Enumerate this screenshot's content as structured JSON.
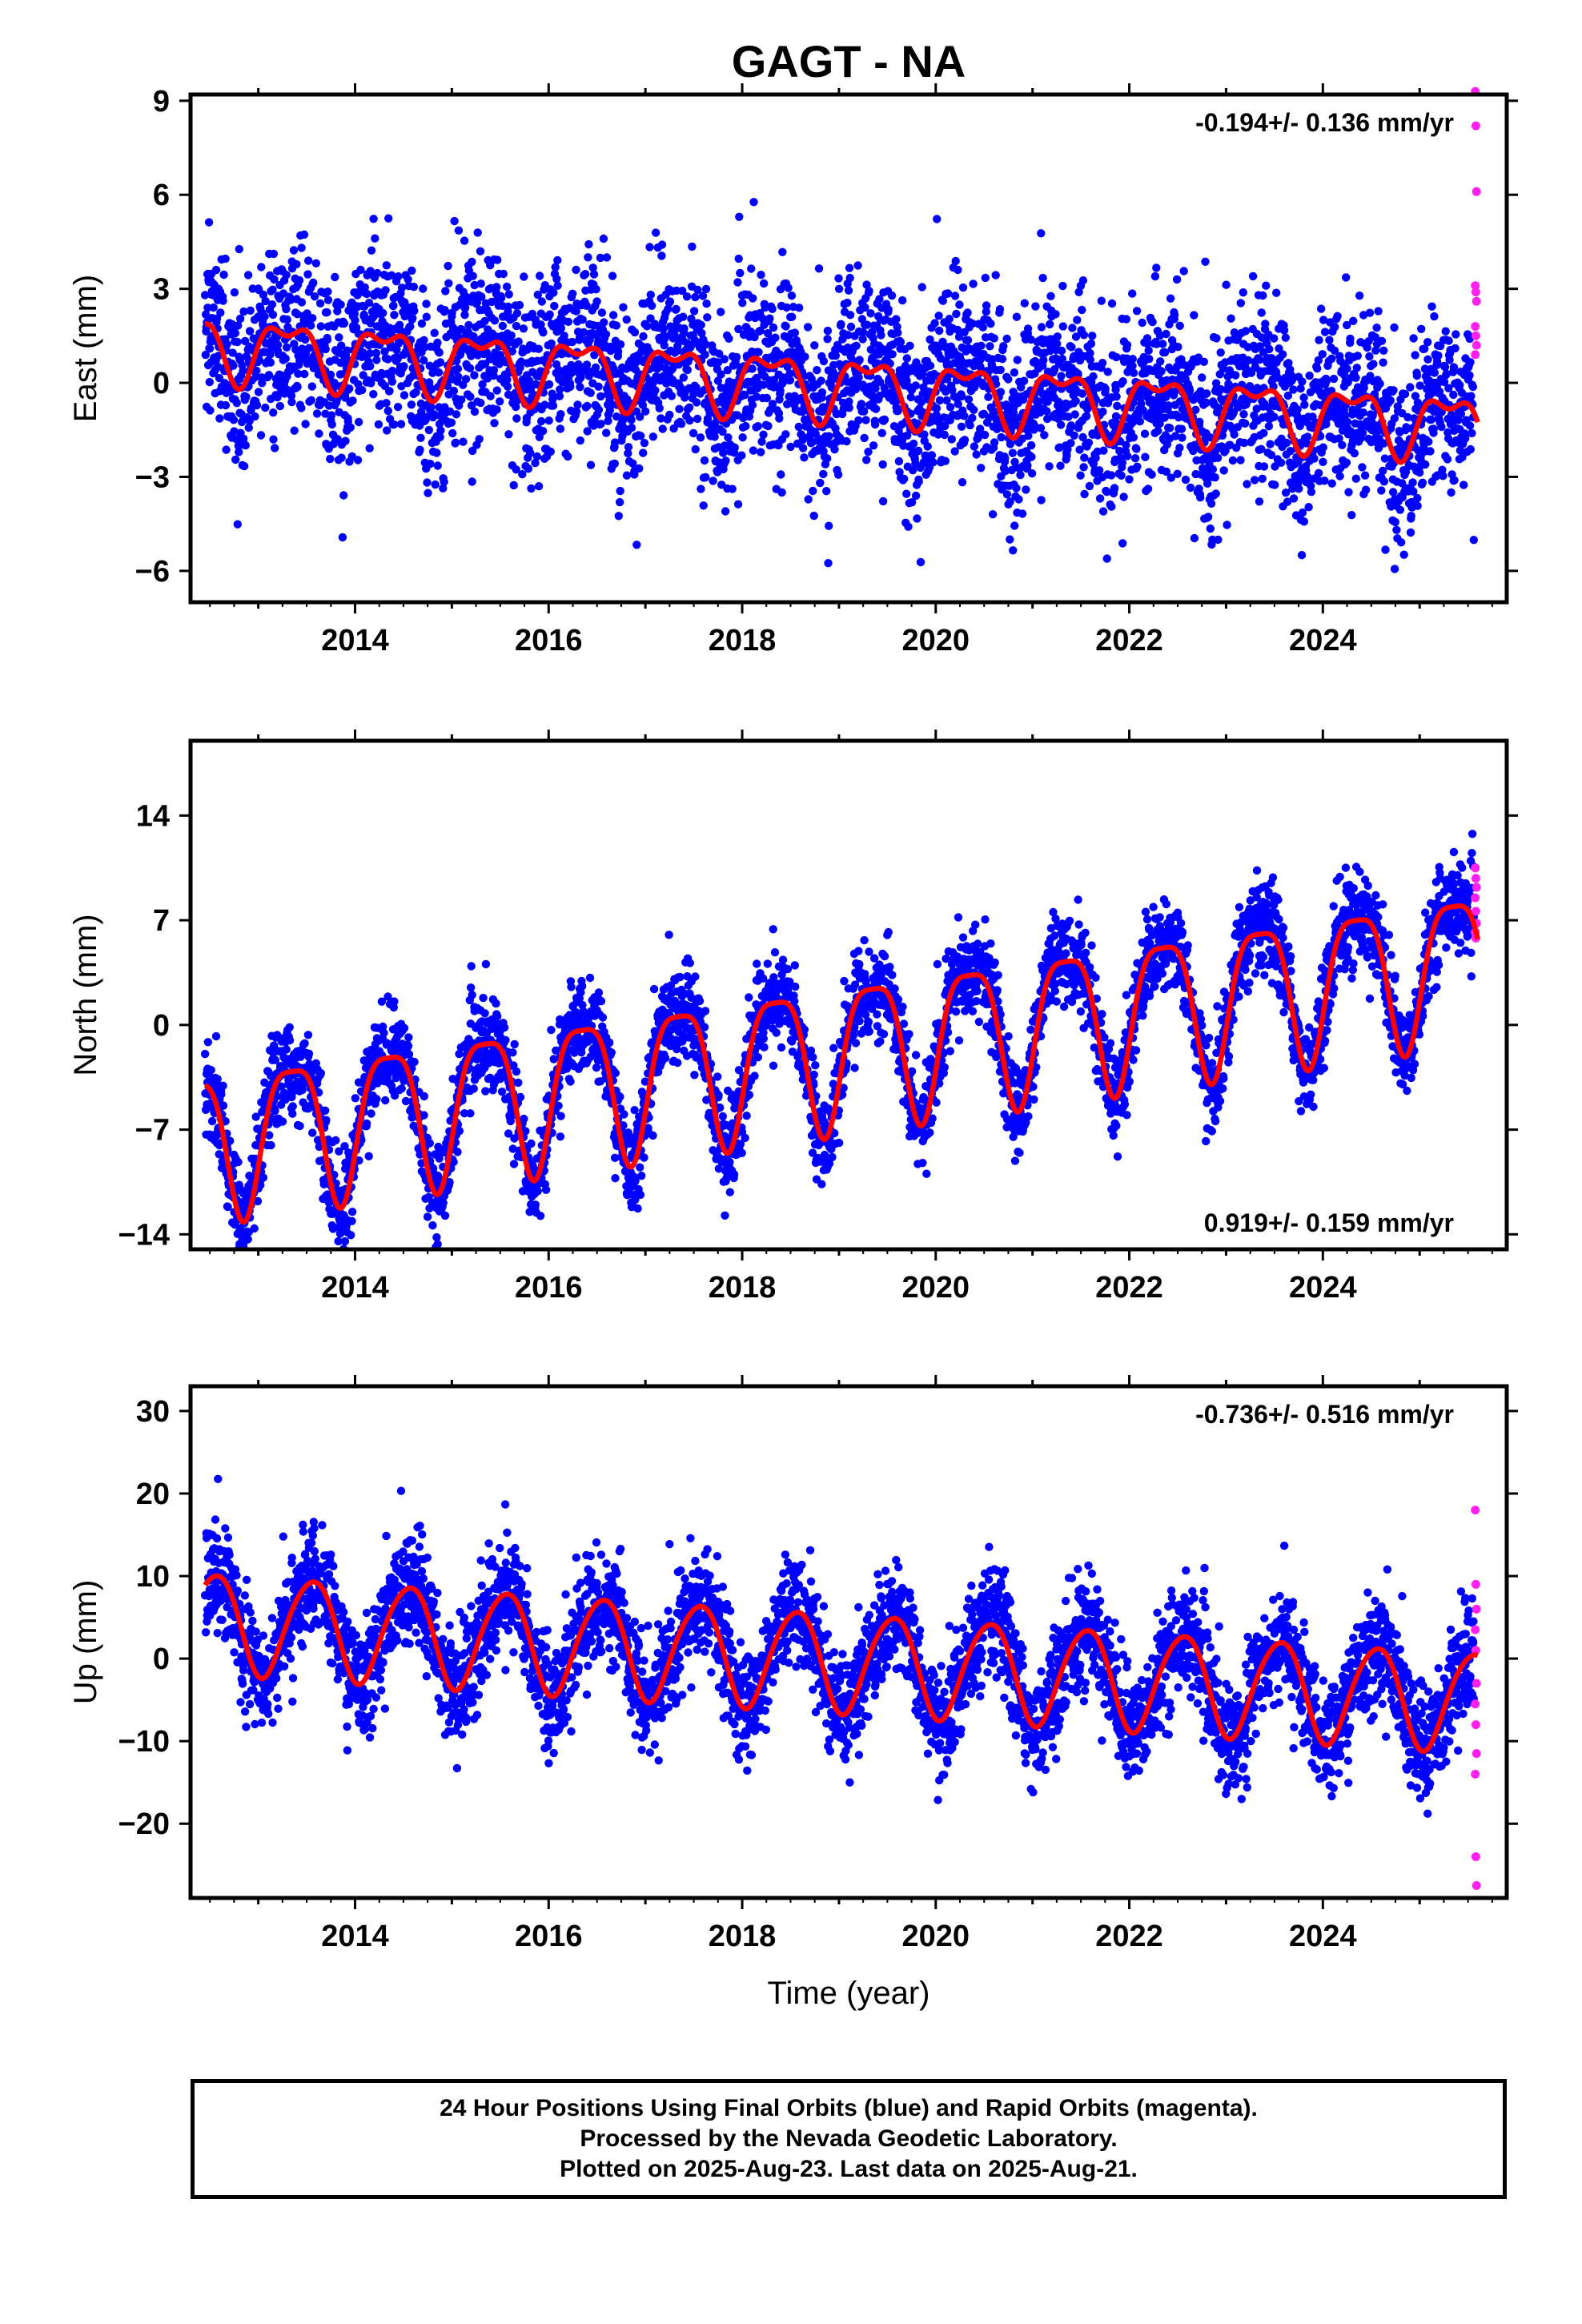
{
  "title": "GAGT - NA",
  "colors": {
    "final": "#0000ff",
    "rapid": "#ff22ee",
    "fit": "#ff0000",
    "axis": "#000000"
  },
  "xaxis": {
    "label": "Time (year)",
    "range": [
      2012.3,
      2025.9
    ],
    "ticks": [
      2014,
      2016,
      2018,
      2020,
      2022,
      2024
    ]
  },
  "panels": [
    {
      "id": "east",
      "ylabel": "East (mm)",
      "ylim": [
        -7,
        9.2
      ],
      "yticks": [
        -6,
        -3,
        0,
        3,
        6,
        9
      ],
      "yticklabels": [
        "−6",
        "−3",
        "0",
        "3",
        "6",
        "9"
      ],
      "rate": "-0.194+/- 0.136 mm/yr",
      "rate_position": "top-right",
      "model": {
        "offset": 1.2,
        "trend": -0.194,
        "a1": 0.9,
        "p1": 2012.3,
        "a2": 0.45,
        "p2": 2012.55,
        "noise": 1.4
      },
      "chart_data": {
        "type": "scatter",
        "series": [
          {
            "name": "Final Orbits",
            "color": "blue"
          },
          {
            "name": "Rapid Orbits",
            "color": "magenta",
            "y": [
              9.3,
              8.2,
              6.1,
              3.1,
              2.9,
              2.6,
              1.8,
              1.5,
              1.2,
              0.9
            ]
          }
        ]
      }
    },
    {
      "id": "north",
      "ylabel": "North (mm)",
      "ylim": [
        -15,
        19
      ],
      "yticks": [
        -14,
        -7,
        0,
        7,
        14
      ],
      "yticklabels": [
        "−14",
        "−7",
        "0",
        "7",
        "14"
      ],
      "rate": "0.919+/- 0.159 mm/yr",
      "rate_position": "bottom-right",
      "model": {
        "offset": -7.5,
        "trend": 0.919,
        "a1": 4.8,
        "p1": 2012.35,
        "a2": 1.2,
        "p2": 2012.6,
        "noise": 1.5
      },
      "chart_data": {
        "type": "scatter",
        "series": [
          {
            "name": "Final Orbits",
            "color": "blue"
          },
          {
            "name": "Rapid Orbits",
            "color": "magenta",
            "y": [
              10.5,
              9.8,
              9.2,
              8.5,
              7.6,
              6.8,
              6.2,
              5.8
            ]
          }
        ]
      }
    },
    {
      "id": "up",
      "ylabel": "Up (mm)",
      "ylim": [
        -29,
        33
      ],
      "yticks": [
        -20,
        -10,
        0,
        10,
        20,
        30
      ],
      "yticklabels": [
        "−20",
        "−10",
        "0",
        "10",
        "20",
        "30"
      ],
      "rate": "-0.736+/- 0.516 mm/yr",
      "rate_position": "top-right",
      "model": {
        "offset": 4.5,
        "trend": -0.736,
        "a1": 6.0,
        "p1": 2012.55,
        "a2": 0.6,
        "p2": 2012.75,
        "noise": 3.3
      },
      "chart_data": {
        "type": "scatter",
        "series": [
          {
            "name": "Final Orbits",
            "color": "blue"
          },
          {
            "name": "Rapid Orbits",
            "color": "magenta",
            "y": [
              18,
              9,
              6,
              3.5,
              1,
              -3,
              -5.5,
              -8,
              -11.5,
              -14,
              -24,
              -27.5
            ]
          }
        ]
      }
    }
  ],
  "footer": {
    "line1": "24 Hour Positions Using Final Orbits (blue) and Rapid Orbits (magenta).",
    "line2": "Processed by the Nevada Geodetic Laboratory.",
    "line3": "Plotted on 2025-Aug-23. Last data on 2025-Aug-21."
  }
}
